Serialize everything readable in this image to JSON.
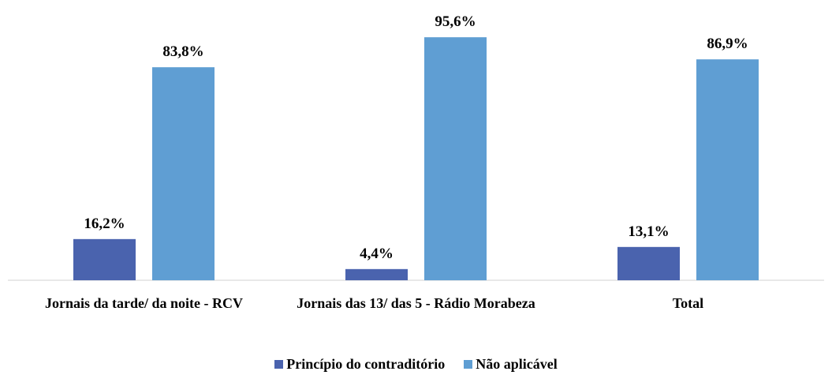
{
  "chart_data": {
    "type": "bar",
    "categories": [
      "Jornais da tarde/ da noite - RCV",
      "Jornais das 13/ das 5 - Rádio Morabeza",
      "Total"
    ],
    "series": [
      {
        "name": "Princípio do contraditório",
        "color": "#4a63ae",
        "values": [
          16.2,
          4.4,
          13.1
        ],
        "value_labels": [
          "16,2%",
          "4,4%",
          "13,1%"
        ]
      },
      {
        "name": "Não aplicável",
        "color": "#5f9ed3",
        "values": [
          83.8,
          95.6,
          86.9
        ],
        "value_labels": [
          "83,8%",
          "95,6%",
          "86,9%"
        ]
      }
    ],
    "legend": "bottom"
  }
}
